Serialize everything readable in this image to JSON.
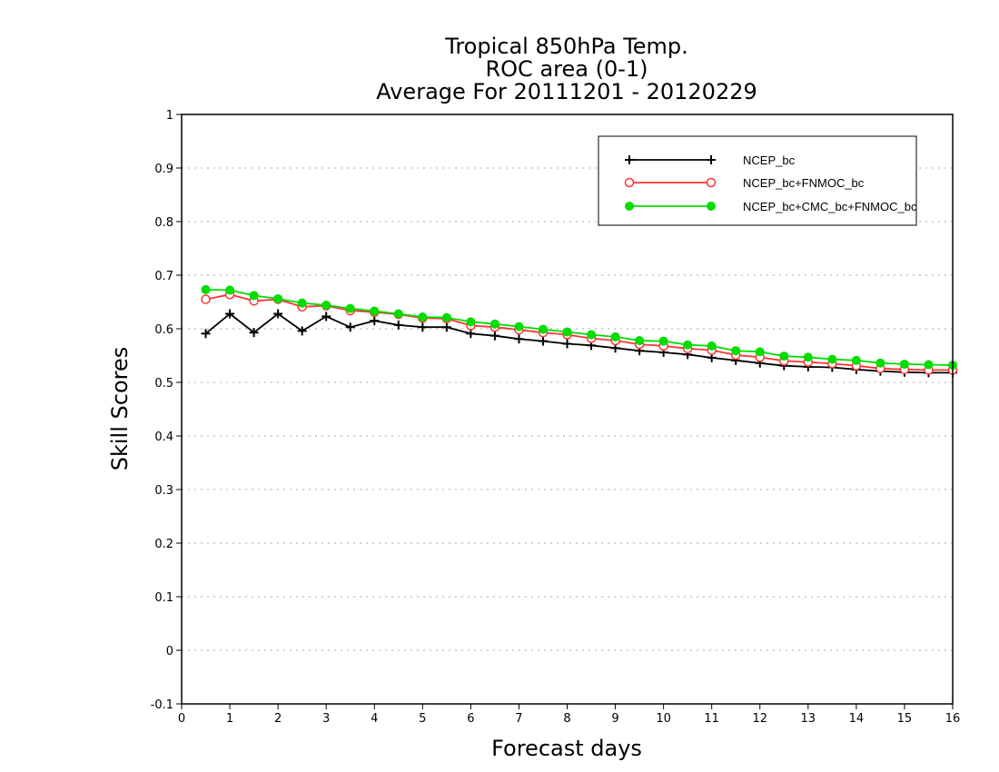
{
  "chart_data": {
    "type": "line",
    "title": [
      "Tropical 850hPa Temp.",
      "ROC area (0-1)",
      "Average For 20111201 - 20120229"
    ],
    "xlabel": "Forecast days",
    "ylabel": "Skill Scores",
    "xlim": [
      0,
      16
    ],
    "ylim": [
      -0.1,
      1
    ],
    "xticks": [
      0,
      1,
      2,
      3,
      4,
      5,
      6,
      7,
      8,
      9,
      10,
      11,
      12,
      13,
      14,
      15,
      16
    ],
    "yticks": [
      -0.1,
      0,
      0.1,
      0.2,
      0.3,
      0.4,
      0.5,
      0.6,
      0.7,
      0.8,
      0.9,
      1
    ],
    "ytick_labels": [
      "-0.1",
      "0",
      "0.1",
      "0.2",
      "0.3",
      "0.4",
      "0.5",
      "0.6",
      "0.7",
      "0.8",
      "0.9",
      "1"
    ],
    "grid": "horizontal-dotted",
    "legend_position": "top-right",
    "x": [
      0.5,
      1,
      1.5,
      2,
      2.5,
      3,
      3.5,
      4,
      4.5,
      5,
      5.5,
      6,
      6.5,
      7,
      7.5,
      8,
      8.5,
      9,
      9.5,
      10,
      10.5,
      11,
      11.5,
      12,
      12.5,
      13,
      13.5,
      14,
      14.5,
      15,
      15.5,
      16
    ],
    "series": [
      {
        "name": "NCEP_bc",
        "color": "#000000",
        "marker": "plus",
        "values": [
          0.591,
          0.628,
          0.593,
          0.628,
          0.596,
          0.623,
          0.603,
          0.615,
          0.607,
          0.603,
          0.603,
          0.591,
          0.587,
          0.581,
          0.577,
          0.572,
          0.569,
          0.564,
          0.559,
          0.556,
          0.552,
          0.546,
          0.541,
          0.536,
          0.531,
          0.529,
          0.528,
          0.524,
          0.521,
          0.519,
          0.518,
          0.518
        ]
      },
      {
        "name": "NCEP_bc+FNMOC_bc",
        "color": "#ff3333",
        "marker": "open-circle",
        "values": [
          0.655,
          0.664,
          0.652,
          0.655,
          0.641,
          0.643,
          0.634,
          0.631,
          0.627,
          0.62,
          0.619,
          0.606,
          0.603,
          0.598,
          0.593,
          0.589,
          0.582,
          0.578,
          0.571,
          0.568,
          0.563,
          0.56,
          0.551,
          0.547,
          0.54,
          0.538,
          0.535,
          0.531,
          0.526,
          0.524,
          0.523,
          0.523
        ]
      },
      {
        "name": "NCEP_bc+CMC_bc+FNMOC_bc",
        "color": "#00dd00",
        "marker": "filled-circle",
        "values": [
          0.673,
          0.672,
          0.662,
          0.656,
          0.648,
          0.644,
          0.638,
          0.633,
          0.628,
          0.622,
          0.621,
          0.613,
          0.609,
          0.604,
          0.599,
          0.594,
          0.589,
          0.585,
          0.578,
          0.577,
          0.57,
          0.568,
          0.559,
          0.557,
          0.549,
          0.547,
          0.543,
          0.541,
          0.536,
          0.534,
          0.533,
          0.532
        ]
      }
    ]
  }
}
